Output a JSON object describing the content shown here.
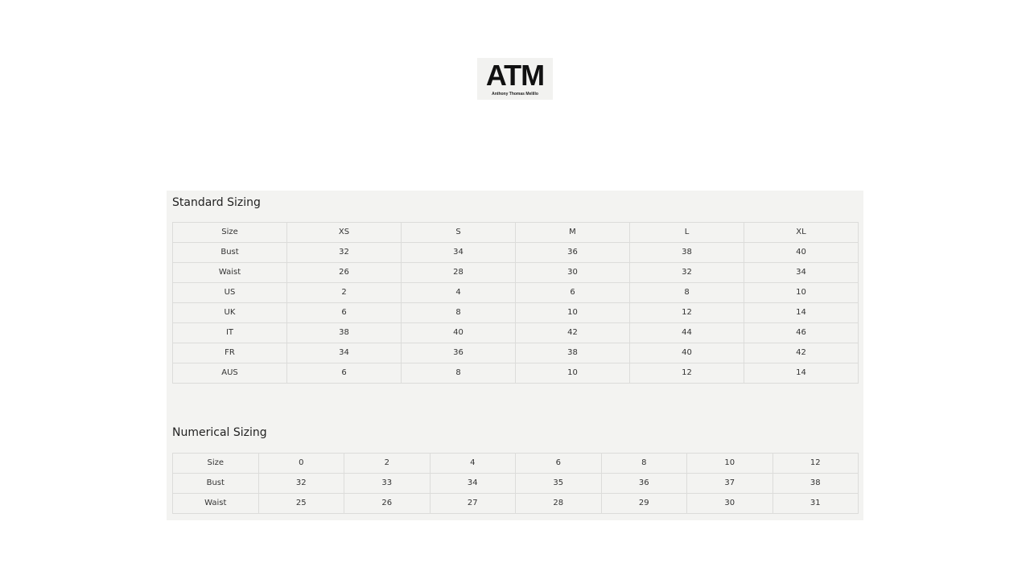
{
  "logo": {
    "text": "ATM",
    "subtitle": "Anthony Thomas Melillo"
  },
  "standard": {
    "title": "Standard Sizing",
    "rows": [
      [
        "Size",
        "XS",
        "S",
        "M",
        "L",
        "XL"
      ],
      [
        "Bust",
        "32",
        "34",
        "36",
        "38",
        "40"
      ],
      [
        "Waist",
        "26",
        "28",
        "30",
        "32",
        "34"
      ],
      [
        "US",
        "2",
        "4",
        "6",
        "8",
        "10"
      ],
      [
        "UK",
        "6",
        "8",
        "10",
        "12",
        "14"
      ],
      [
        "IT",
        "38",
        "40",
        "42",
        "44",
        "46"
      ],
      [
        "FR",
        "34",
        "36",
        "38",
        "40",
        "42"
      ],
      [
        "AUS",
        "6",
        "8",
        "10",
        "12",
        "14"
      ]
    ]
  },
  "numerical": {
    "title": "Numerical Sizing",
    "rows": [
      [
        "Size",
        "0",
        "2",
        "4",
        "6",
        "8",
        "10",
        "12"
      ],
      [
        "Bust",
        "32",
        "33",
        "34",
        "35",
        "36",
        "37",
        "38"
      ],
      [
        "Waist",
        "25",
        "26",
        "27",
        "28",
        "29",
        "30",
        "31"
      ]
    ]
  }
}
